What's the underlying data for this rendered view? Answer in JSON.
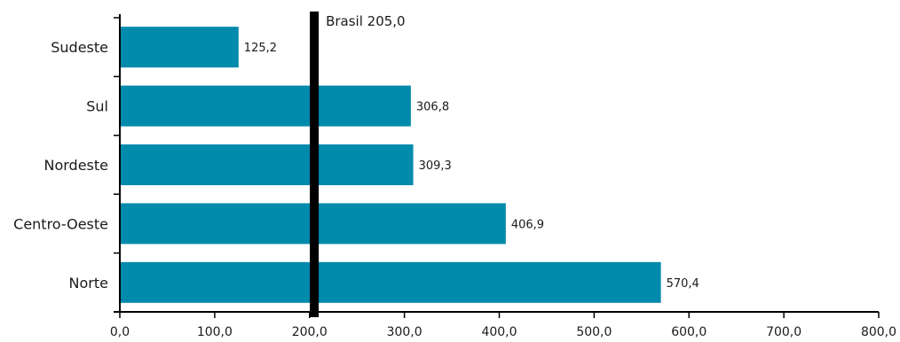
{
  "chart_data": {
    "type": "bar",
    "orientation": "horizontal",
    "categories": [
      "Sudeste",
      "Sul",
      "Nordeste",
      "Centro-Oeste",
      "Norte"
    ],
    "values": [
      125.2,
      306.8,
      309.3,
      406.9,
      570.4
    ],
    "value_labels": [
      "125,2",
      "306,8",
      "309,3",
      "406,9",
      "570,4"
    ],
    "xlim": [
      0,
      800
    ],
    "xticks": [
      0,
      100,
      200,
      300,
      400,
      500,
      600,
      700,
      800
    ],
    "xtick_labels": [
      "0,0",
      "100,0",
      "200,0",
      "300,0",
      "400,0",
      "500,0",
      "600,0",
      "700,0",
      "800,0"
    ],
    "reference_line": {
      "value": 205.0,
      "label": "Brasil 205,0"
    },
    "grid": false,
    "legend": "none",
    "colors": {
      "bar": "#008aab",
      "reference": "#000000",
      "axis": "#000000"
    }
  }
}
